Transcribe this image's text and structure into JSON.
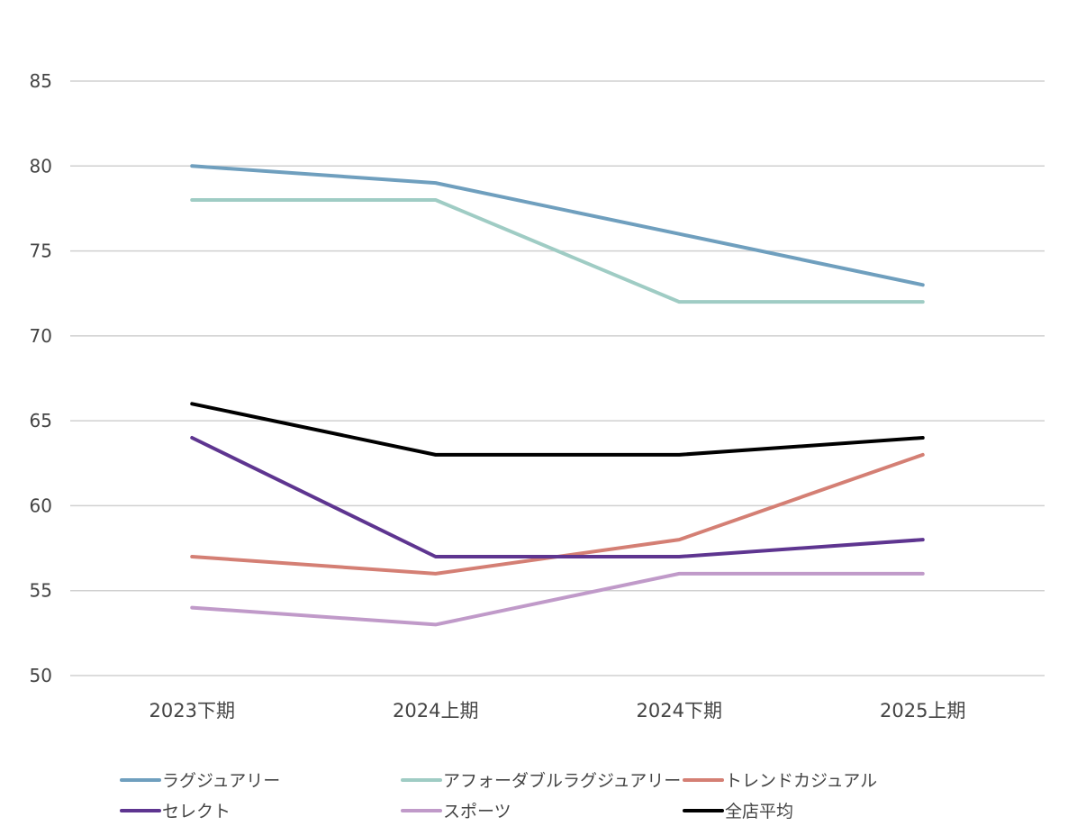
{
  "chart_data": {
    "type": "line",
    "title": "",
    "xlabel": "",
    "ylabel": "",
    "categories": [
      "2023下期",
      "2024上期",
      "2024下期",
      "2025上期"
    ],
    "ylim": [
      50,
      85
    ],
    "yticks": [
      50,
      55,
      60,
      65,
      70,
      75,
      80,
      85
    ],
    "grid": true,
    "legend_position": "bottom",
    "series": [
      {
        "name": "ラグジュアリー",
        "color": "#6f9fbe",
        "values": [
          80,
          79,
          76,
          73
        ]
      },
      {
        "name": "アフォーダブルラグジュアリー",
        "color": "#9fccc4",
        "values": [
          78,
          78,
          72,
          72
        ]
      },
      {
        "name": "トレンドカジュアル",
        "color": "#d47f74",
        "values": [
          57,
          56,
          58,
          63
        ]
      },
      {
        "name": "セレクト",
        "color": "#5e3590",
        "values": [
          64,
          57,
          57,
          58
        ]
      },
      {
        "name": "スポーツ",
        "color": "#c09ac9",
        "values": [
          54,
          53,
          56,
          56
        ]
      },
      {
        "name": "全店平均",
        "color": "#000000",
        "values": [
          66,
          63,
          63,
          64
        ]
      }
    ]
  }
}
